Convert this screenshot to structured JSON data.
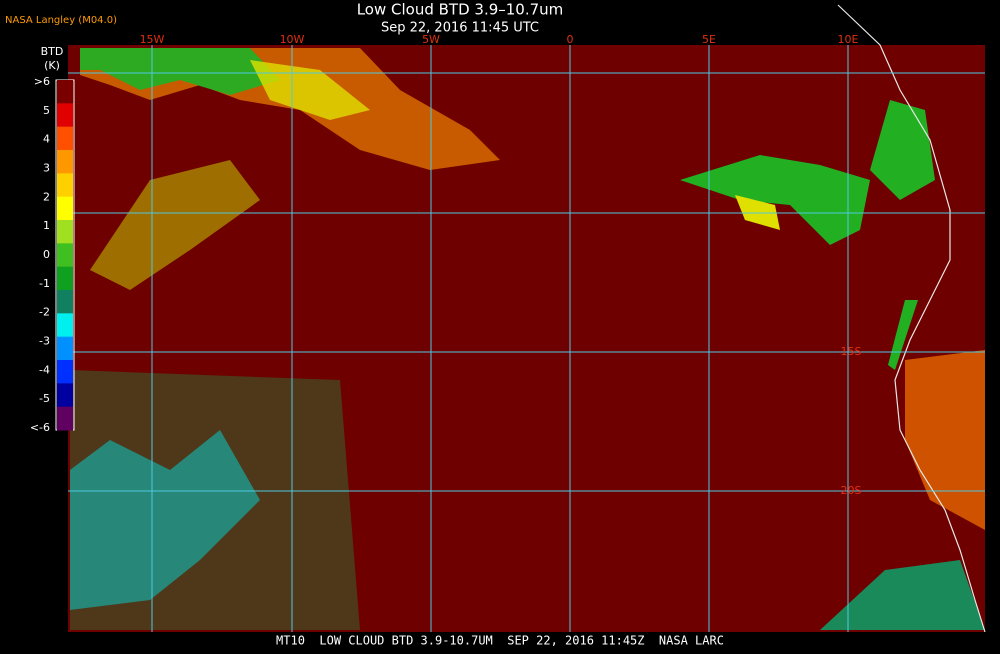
{
  "header": {
    "source": "NASA Langley (M04.0)",
    "title": "Low Cloud BTD 3.9–10.7um",
    "subtitle": "Sep 22, 2016 11:45 UTC"
  },
  "legend": {
    "title": "BTD",
    "unit": "(K)",
    "labels": [
      ">6",
      "5",
      "4",
      "3",
      "2",
      "1",
      "0",
      "-1",
      "-2",
      "-3",
      "-4",
      "-5",
      "<-6"
    ]
  },
  "map": {
    "longitude_labels": [
      "15W",
      "10W",
      "5W",
      "0",
      "5E",
      "10E"
    ],
    "latitude_labels": [
      "15S",
      "20S"
    ]
  },
  "footer": "MT10  LOW CLOUD BTD 3.9-10.7UM  SEP 22, 2016 11:45Z  NASA LARC"
}
